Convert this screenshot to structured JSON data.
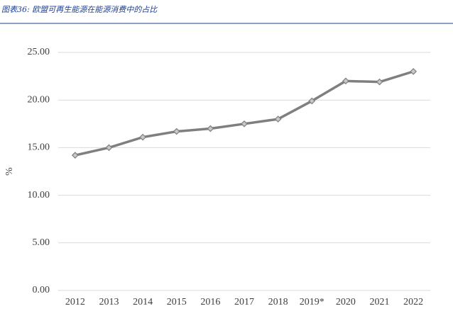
{
  "chart_data": {
    "type": "line",
    "title": "图表36: 欧盟可再生能源在能源消费中的占比",
    "y_label": "%",
    "categories": [
      "2012",
      "2013",
      "2014",
      "2015",
      "2016",
      "2017",
      "2018",
      "2019*",
      "2020",
      "2021",
      "2022"
    ],
    "values": [
      14.2,
      15.0,
      16.1,
      16.7,
      17.0,
      17.5,
      18.0,
      19.9,
      22.0,
      21.9,
      23.0
    ],
    "color": "#7f7f7f",
    "ylim": [
      0,
      25
    ],
    "yticks": [
      {
        "value": 0,
        "label": "0.00"
      },
      {
        "value": 5,
        "label": "5.00"
      },
      {
        "value": 10,
        "label": "10.00"
      },
      {
        "value": 15,
        "label": "15.00"
      },
      {
        "value": 20,
        "label": "20.00"
      },
      {
        "value": 25,
        "label": "25.00"
      }
    ],
    "grid": true
  }
}
